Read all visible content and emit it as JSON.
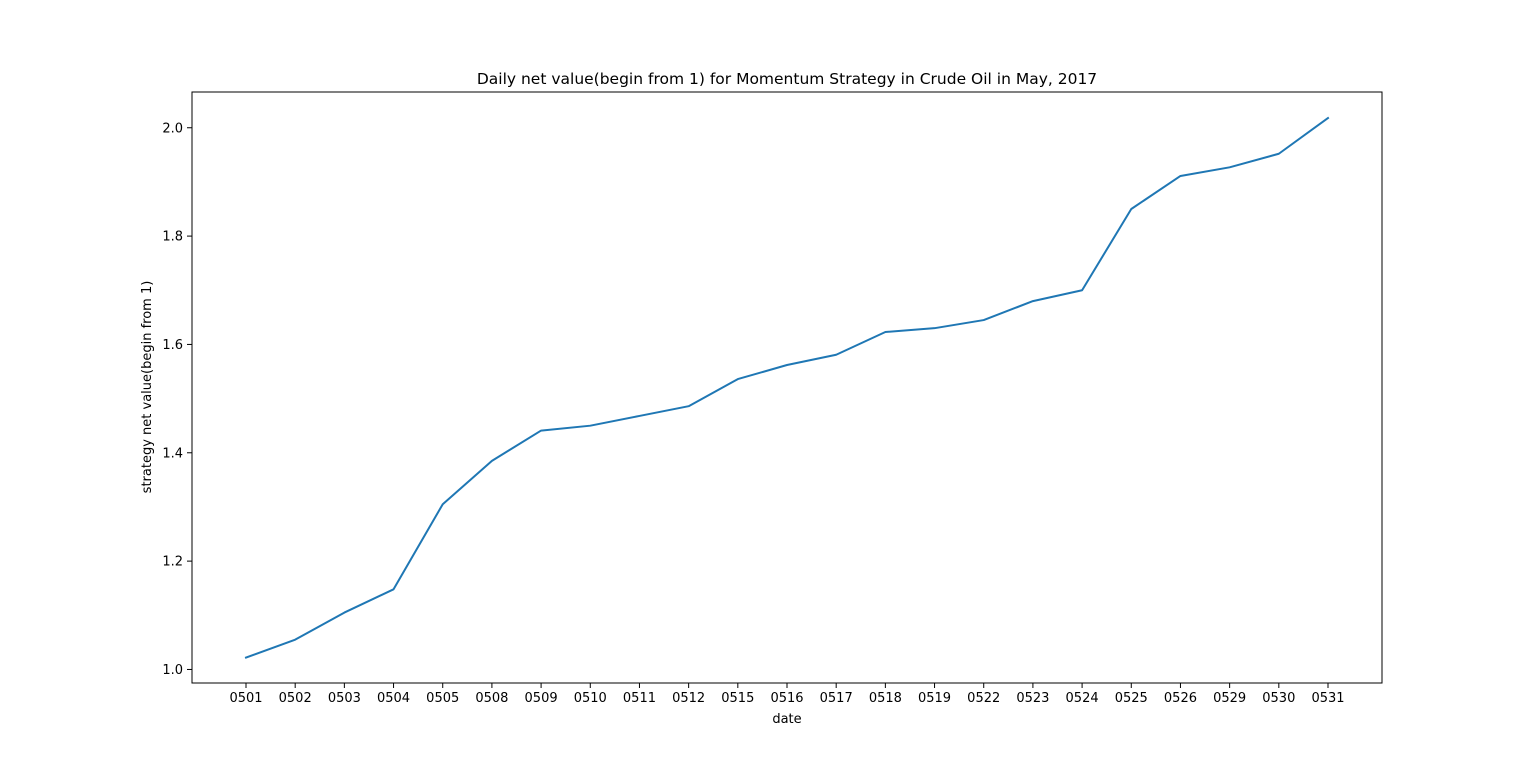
{
  "chart_data": {
    "type": "line",
    "title": "Daily net value(begin from 1) for Momentum Strategy in Crude Oil in May, 2017",
    "xlabel": "date",
    "ylabel": "strategy net value(begin from 1)",
    "categories": [
      "0501",
      "0502",
      "0503",
      "0504",
      "0505",
      "0508",
      "0509",
      "0510",
      "0511",
      "0512",
      "0515",
      "0516",
      "0517",
      "0518",
      "0519",
      "0522",
      "0523",
      "0524",
      "0525",
      "0526",
      "0529",
      "0530",
      "0531"
    ],
    "series": [
      {
        "values": [
          1.022,
          1.055,
          1.105,
          1.148,
          1.305,
          1.385,
          1.441,
          1.45,
          1.468,
          1.486,
          1.536,
          1.562,
          1.581,
          1.623,
          1.63,
          1.645,
          1.68,
          1.7,
          1.85,
          1.911,
          1.927,
          1.952,
          2.018
        ],
        "color": "#1f77b4"
      }
    ],
    "yticks": [
      "1.0",
      "1.2",
      "1.4",
      "1.6",
      "1.8",
      "2.0"
    ],
    "ylim": [
      0.975,
      2.066
    ],
    "grid": false,
    "legend": "none"
  }
}
